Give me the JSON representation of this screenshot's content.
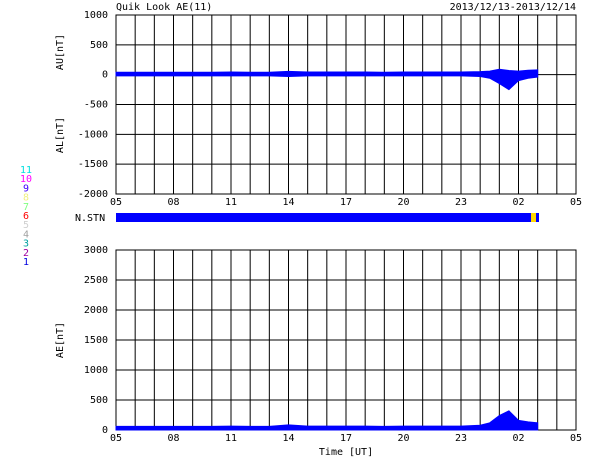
{
  "chart_data": [
    {
      "type": "area",
      "title": "Quik Look AE(11)",
      "subtitle": "2013/12/13-2013/12/14",
      "ylabel_upper": "AU[nT]",
      "ylabel_lower": "AL[nT]",
      "bar_label": "N.STN",
      "x": [
        0,
        1,
        2,
        3,
        4,
        5,
        6,
        7,
        8,
        9,
        10,
        11,
        12,
        13,
        14,
        15,
        16,
        17,
        18,
        19,
        19.5,
        20,
        20.5,
        21,
        21.5,
        22
      ],
      "series": [
        {
          "color": "#0000ff",
          "values": [
            40,
            40,
            40,
            40,
            40,
            40,
            45,
            40,
            40,
            55,
            45,
            45,
            45,
            45,
            40,
            45,
            45,
            45,
            45,
            50,
            60,
            90,
            70,
            60,
            75,
            80
          ]
        },
        {
          "color": "#0000ff",
          "values": [
            -20,
            -20,
            -20,
            -20,
            -20,
            -20,
            -20,
            -20,
            -20,
            -30,
            -20,
            -20,
            -20,
            -20,
            -20,
            -20,
            -20,
            -20,
            -20,
            -30,
            -60,
            -150,
            -250,
            -100,
            -60,
            -40
          ]
        }
      ],
      "xlim": [
        0,
        24
      ],
      "xticks": [
        {
          "value": 0,
          "label": "05"
        },
        {
          "value": 1,
          "label": null
        },
        {
          "value": 2,
          "label": null
        },
        {
          "value": 3,
          "label": "08"
        },
        {
          "value": 4,
          "label": null
        },
        {
          "value": 5,
          "label": null
        },
        {
          "value": 6,
          "label": "11"
        },
        {
          "value": 7,
          "label": null
        },
        {
          "value": 8,
          "label": null
        },
        {
          "value": 9,
          "label": "14"
        },
        {
          "value": 10,
          "label": null
        },
        {
          "value": 11,
          "label": null
        },
        {
          "value": 12,
          "label": "17"
        },
        {
          "value": 13,
          "label": null
        },
        {
          "value": 14,
          "label": null
        },
        {
          "value": 15,
          "label": "20"
        },
        {
          "value": 16,
          "label": null
        },
        {
          "value": 17,
          "label": null
        },
        {
          "value": 18,
          "label": "23"
        },
        {
          "value": 19,
          "label": null
        },
        {
          "value": 20,
          "label": null
        },
        {
          "value": 21,
          "label": "02"
        },
        {
          "value": 22,
          "label": null
        },
        {
          "value": 23,
          "label": null
        },
        {
          "value": 24,
          "label": "05"
        }
      ],
      "ylim": [
        -2000,
        1000
      ],
      "yticks": [
        -2000,
        -1500,
        -1000,
        -500,
        0,
        500,
        1000
      ],
      "station_legend": [
        {
          "label": "11",
          "color": "#00e0e0"
        },
        {
          "label": "10",
          "color": "#ff00ff"
        },
        {
          "label": "9",
          "color": "#4000ff"
        },
        {
          "label": "8",
          "color": "#f0f080"
        },
        {
          "label": "7",
          "color": "#80ff80"
        },
        {
          "label": "6",
          "color": "#ff0000"
        },
        {
          "label": "5",
          "color": "#d0d0d0"
        },
        {
          "label": "4",
          "color": "#a0a0a0"
        },
        {
          "label": "3",
          "color": "#00a0a0"
        },
        {
          "label": "2",
          "color": "#a000a0"
        },
        {
          "label": "1",
          "color": "#0000e0"
        }
      ]
    },
    {
      "type": "area",
      "ylabel": "AE[nT]",
      "xlabel": "Time [UT]",
      "x": [
        0,
        1,
        2,
        3,
        4,
        5,
        6,
        7,
        8,
        9,
        10,
        11,
        12,
        13,
        14,
        15,
        16,
        17,
        18,
        19,
        19.5,
        20,
        20.5,
        21,
        21.5,
        22
      ],
      "series": [
        {
          "color": "#0000ff",
          "values": [
            60,
            60,
            60,
            60,
            60,
            60,
            65,
            60,
            60,
            85,
            65,
            65,
            65,
            65,
            60,
            65,
            65,
            65,
            65,
            80,
            120,
            240,
            320,
            160,
            135,
            120
          ]
        }
      ],
      "xlim": [
        0,
        24
      ],
      "xticks": [
        {
          "value": 0,
          "label": "05"
        },
        {
          "value": 1,
          "label": null
        },
        {
          "value": 2,
          "label": null
        },
        {
          "value": 3,
          "label": "08"
        },
        {
          "value": 4,
          "label": null
        },
        {
          "value": 5,
          "label": null
        },
        {
          "value": 6,
          "label": "11"
        },
        {
          "value": 7,
          "label": null
        },
        {
          "value": 8,
          "label": null
        },
        {
          "value": 9,
          "label": "14"
        },
        {
          "value": 10,
          "label": null
        },
        {
          "value": 11,
          "label": null
        },
        {
          "value": 12,
          "label": "17"
        },
        {
          "value": 13,
          "label": null
        },
        {
          "value": 14,
          "label": null
        },
        {
          "value": 15,
          "label": "20"
        },
        {
          "value": 16,
          "label": null
        },
        {
          "value": 17,
          "label": null
        },
        {
          "value": 18,
          "label": "23"
        },
        {
          "value": 19,
          "label": null
        },
        {
          "value": 20,
          "label": null
        },
        {
          "value": 21,
          "label": "02"
        },
        {
          "value": 22,
          "label": null
        },
        {
          "value": 23,
          "label": null
        },
        {
          "value": 24,
          "label": "05"
        }
      ],
      "ylim": [
        0,
        3000
      ],
      "yticks": [
        0,
        500,
        1000,
        1500,
        2000,
        2500,
        3000
      ]
    }
  ]
}
